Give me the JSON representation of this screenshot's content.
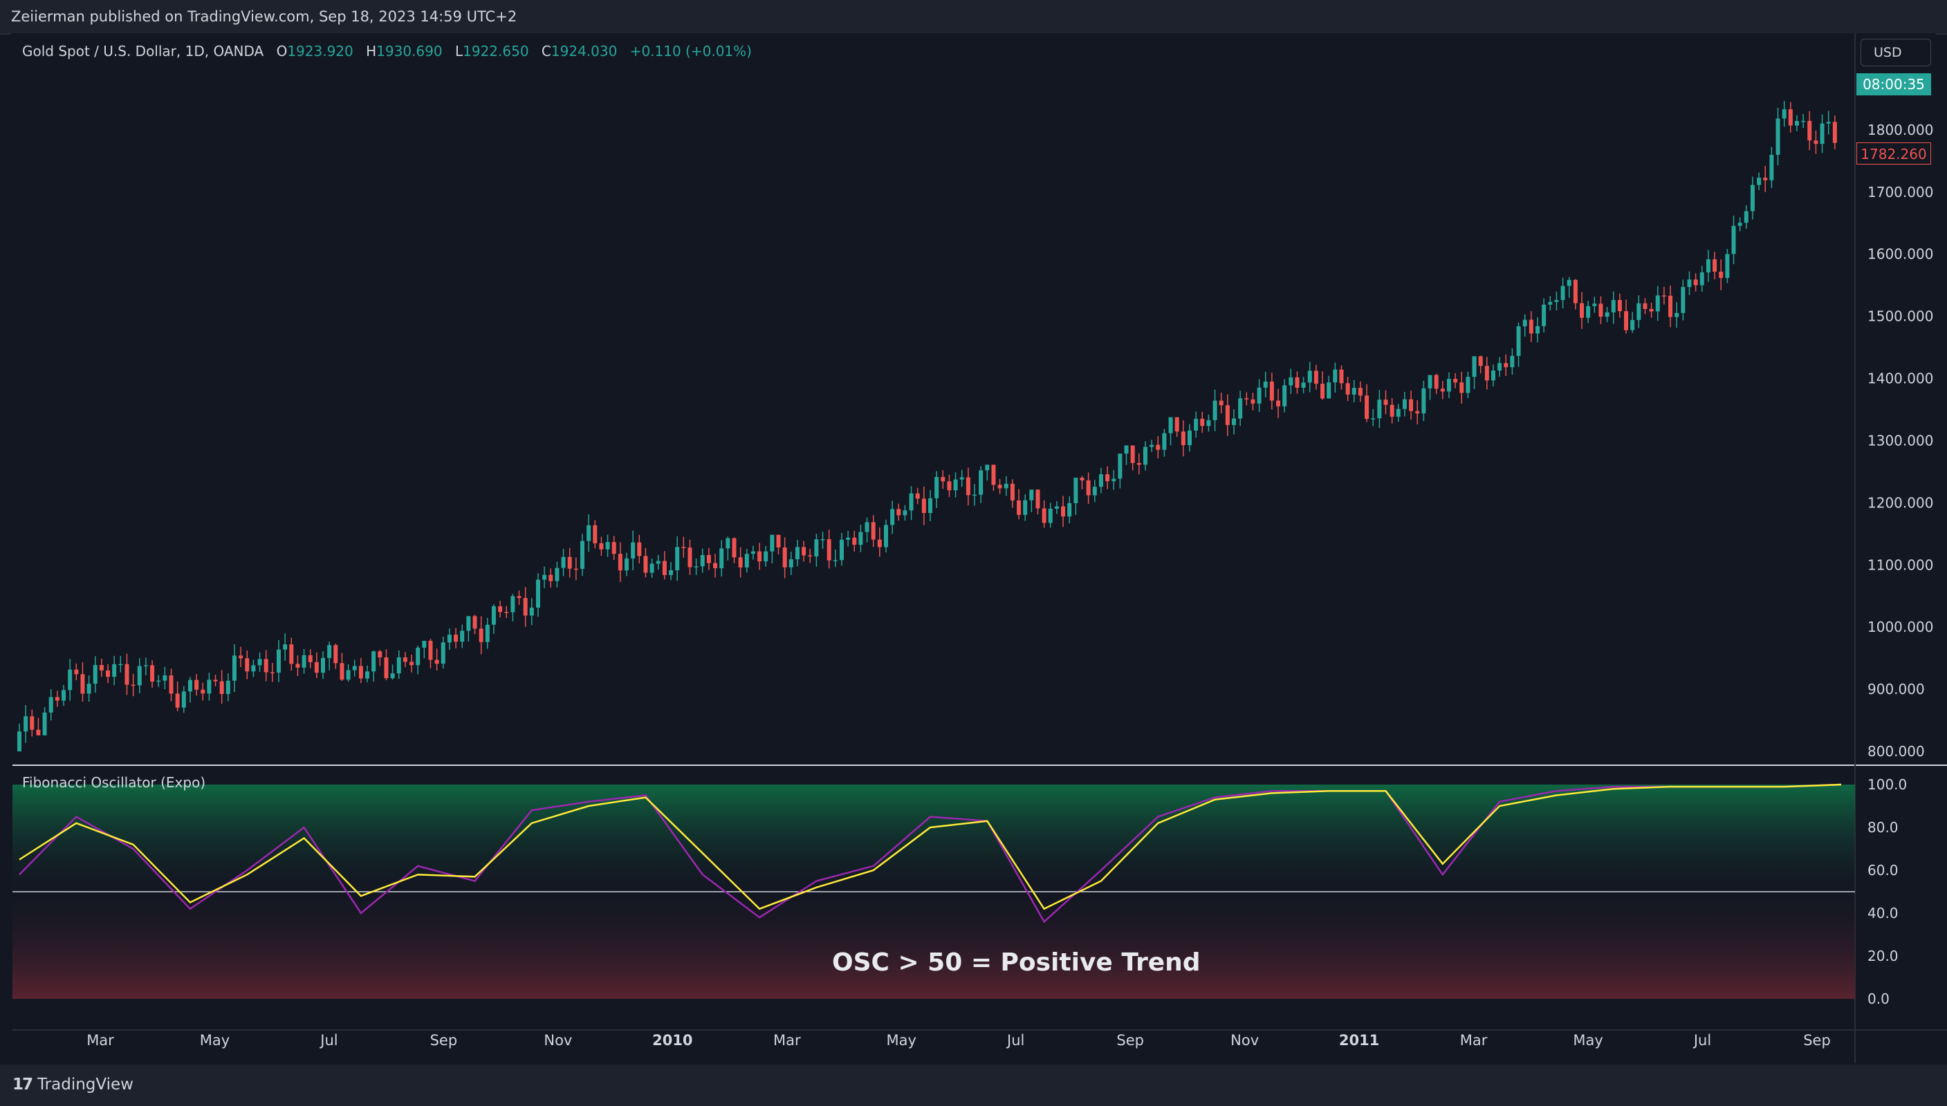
{
  "header": {
    "published": "Zeiierman published on TradingView.com, Sep 18, 2023 14:59 UTC+2"
  },
  "legend": {
    "symbol": "Gold Spot / U.S. Dollar, 1D, OANDA",
    "o_label": "O",
    "o": "1923.920",
    "h_label": "H",
    "h": "1930.690",
    "l_label": "L",
    "l": "1922.650",
    "c_label": "C",
    "c": "1924.030",
    "change": "+0.110 (+0.01%)"
  },
  "currency_button": "USD",
  "countdown": "08:00:35",
  "last_price": "1782.260",
  "footer": {
    "brand": "TradingView"
  },
  "colors": {
    "background": "#131722",
    "up": "#26a69a",
    "down": "#ef5350",
    "osc": "#9c27b0",
    "signal": "#ffeb3b",
    "panel_green": "#0f5a3a",
    "panel_red": "#5a1f2a"
  },
  "chart_data": [
    {
      "type": "candlestick",
      "title": "Gold Spot / U.S. Dollar, 1D, OANDA",
      "y_ticks": [
        "800.000",
        "900.000",
        "1000.000",
        "1100.000",
        "1200.000",
        "1300.000",
        "1400.000",
        "1500.000",
        "1600.000",
        "1700.000",
        "1800.000"
      ],
      "ylim": [
        780,
        1940
      ],
      "x_ticks": [
        "Mar",
        "May",
        "Jul",
        "Sep",
        "Nov",
        "2010",
        "Mar",
        "May",
        "Jul",
        "Sep",
        "Nov",
        "2011",
        "Mar",
        "May",
        "Jul",
        "Sep"
      ],
      "x": [
        "2009-01",
        "2009-02",
        "2009-03",
        "2009-04",
        "2009-05",
        "2009-06",
        "2009-07",
        "2009-08",
        "2009-09",
        "2009-10",
        "2009-11",
        "2009-12",
        "2010-01",
        "2010-02",
        "2010-03",
        "2010-04",
        "2010-05",
        "2010-06",
        "2010-07",
        "2010-08",
        "2010-09",
        "2010-10",
        "2010-11",
        "2010-12",
        "2011-01",
        "2011-02",
        "2011-03",
        "2011-04",
        "2011-05",
        "2011-06",
        "2011-07",
        "2011-08",
        "2011-09"
      ],
      "close": [
        820,
        920,
        930,
        890,
        940,
        950,
        930,
        950,
        1000,
        1050,
        1140,
        1100,
        1110,
        1120,
        1120,
        1150,
        1220,
        1240,
        1180,
        1240,
        1300,
        1340,
        1380,
        1400,
        1340,
        1390,
        1420,
        1540,
        1500,
        1520,
        1600,
        1820,
        1780
      ],
      "high": [
        930,
        1000,
        960,
        920,
        990,
        990,
        960,
        970,
        1020,
        1070,
        1220,
        1150,
        1150,
        1140,
        1150,
        1180,
        1250,
        1260,
        1210,
        1260,
        1310,
        1390,
        1420,
        1430,
        1390,
        1410,
        1450,
        1570,
        1540,
        1560,
        1640,
        1900,
        1920
      ],
      "low": [
        800,
        880,
        880,
        860,
        890,
        920,
        910,
        920,
        950,
        990,
        1050,
        1080,
        1070,
        1040,
        1090,
        1110,
        1140,
        1190,
        1160,
        1160,
        1240,
        1290,
        1330,
        1370,
        1310,
        1320,
        1380,
        1420,
        1470,
        1480,
        1490,
        1580,
        1700
      ]
    },
    {
      "type": "line",
      "title": "Fibonacci Oscillator (Expo)",
      "y_ticks": [
        "0.0",
        "20.0",
        "40.0",
        "60.0",
        "80.0",
        "100.0"
      ],
      "ylim": [
        0,
        100
      ],
      "reference_line": 50,
      "series": [
        {
          "values": [
            58,
            85,
            70,
            42,
            60,
            80,
            40,
            62,
            55,
            88,
            92,
            95,
            58,
            38,
            55,
            62,
            85,
            83,
            36,
            60,
            85,
            94,
            97,
            97,
            97,
            58,
            92,
            97,
            99,
            99,
            99,
            99,
            100
          ]
        },
        {
          "values": [
            65,
            82,
            72,
            45,
            58,
            75,
            48,
            58,
            57,
            82,
            90,
            94,
            68,
            42,
            52,
            60,
            80,
            83,
            42,
            55,
            82,
            93,
            96,
            97,
            97,
            63,
            90,
            95,
            98,
            99,
            99,
            99,
            100
          ]
        }
      ],
      "annotation": "OSC > 50 = Positive Trend"
    }
  ]
}
